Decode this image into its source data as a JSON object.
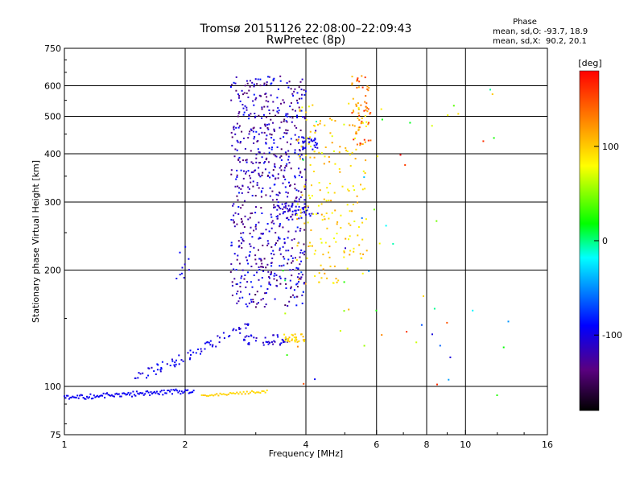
{
  "chart_data": {
    "type": "scatter",
    "title": "Tromsø 20151126 22:08:00–22:09:43",
    "subtitle": "RwPretec (8p)",
    "xlabel": "Frequency [MHz]",
    "ylabel": "Stationary phase Virtual Height [km]",
    "x_scale": "log",
    "y_scale": "log",
    "xlim": [
      1,
      16
    ],
    "ylim": [
      75,
      750
    ],
    "x_ticks": [
      1,
      2,
      4,
      6,
      8,
      10,
      16
    ],
    "x_tick_labels": [
      "1",
      "2",
      "4",
      "6",
      "8",
      "10",
      "16"
    ],
    "y_ticks": [
      75,
      100,
      200,
      300,
      400,
      500,
      600,
      750
    ],
    "y_tick_labels": [
      "75",
      "100",
      "200",
      "300",
      "400",
      "500",
      "600",
      "750"
    ],
    "grid": true,
    "grid_x": [
      2,
      4,
      6,
      8,
      10
    ],
    "grid_y": [
      100,
      200,
      300,
      400,
      500,
      600
    ],
    "phase_stats": {
      "heading": "Phase",
      "line_o": "mean, sd,O: -93.7, 18.9",
      "line_x": "mean, sd,X:  90.2, 20.1"
    },
    "colorbar": {
      "label": "[deg]",
      "range": [
        -180,
        180
      ],
      "ticks": [
        100,
        0,
        -100
      ],
      "tick_labels": [
        "100",
        "0",
        "-100"
      ],
      "colors": [
        "#000000",
        "#5a0080",
        "#0000ff",
        "#00ffff",
        "#00ff00",
        "#ffff00",
        "#ff8000",
        "#ff0000"
      ]
    },
    "clusters": [
      {
        "name": "o_lowE",
        "x": [
          1.0,
          2.1
        ],
        "y": [
          92,
          99
        ],
        "phase": [
          -100,
          -90
        ],
        "n": 110,
        "mode": "trace"
      },
      {
        "name": "x_lowE",
        "x": [
          2.2,
          3.2
        ],
        "y": [
          94,
          98
        ],
        "phase": [
          90,
          105
        ],
        "n": 40,
        "mode": "trace"
      },
      {
        "name": "o_E_rise",
        "x": [
          1.5,
          2.2
        ],
        "y": [
          105,
          125
        ],
        "phase": [
          -110,
          -85
        ],
        "n": 45,
        "mode": "rise"
      },
      {
        "name": "o_E_rise2",
        "x": [
          2.2,
          2.9
        ],
        "y": [
          125,
          145
        ],
        "phase": [
          -110,
          -90
        ],
        "n": 30,
        "mode": "rise"
      },
      {
        "name": "o_Es_band",
        "x": [
          2.8,
          3.6
        ],
        "y": [
          128,
          136
        ],
        "phase": [
          -120,
          -90
        ],
        "n": 40,
        "mode": "band"
      },
      {
        "name": "x_Es_band",
        "x": [
          3.5,
          4.0
        ],
        "y": [
          130,
          137
        ],
        "phase": [
          80,
          110
        ],
        "n": 30,
        "mode": "band"
      },
      {
        "name": "o_F_cloud",
        "x": [
          2.6,
          4.0
        ],
        "y": [
          160,
          640
        ],
        "phase": [
          -150,
          -80
        ],
        "n": 700,
        "mode": "cloud"
      },
      {
        "name": "o_F_trace",
        "x": [
          3.3,
          4.3
        ],
        "y": [
          270,
          300
        ],
        "phase": [
          -110,
          -90
        ],
        "n": 40,
        "mode": "band"
      },
      {
        "name": "o_F_upper",
        "x": [
          3.9,
          4.3
        ],
        "y": [
          410,
          440
        ],
        "phase": [
          -110,
          -90
        ],
        "n": 30,
        "mode": "band"
      },
      {
        "name": "x_F_cloud",
        "x": [
          3.8,
          5.7
        ],
        "y": [
          180,
          560
        ],
        "phase": [
          70,
          120
        ],
        "n": 200,
        "mode": "cloud"
      },
      {
        "name": "x_F_top",
        "x": [
          5.2,
          5.8
        ],
        "y": [
          420,
          650
        ],
        "phase": [
          100,
          170
        ],
        "n": 60,
        "mode": "cloud"
      },
      {
        "name": "scattered",
        "x": [
          3.5,
          13.0
        ],
        "y": [
          90,
          600
        ],
        "phase": [
          -120,
          180
        ],
        "n": 60,
        "mode": "scatter"
      },
      {
        "name": "o_low_spot",
        "x": [
          1.9,
          2.05
        ],
        "y": [
          190,
          230
        ],
        "phase": [
          -110,
          -90
        ],
        "n": 10,
        "mode": "cloud"
      }
    ]
  }
}
